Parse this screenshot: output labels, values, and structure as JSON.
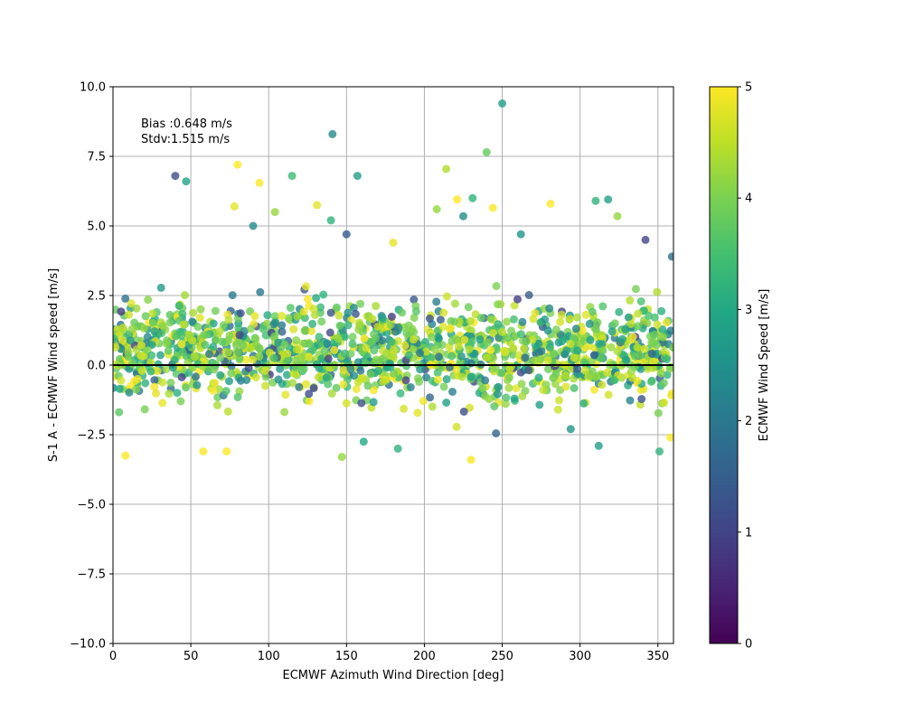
{
  "chart_data": {
    "type": "scatter",
    "title": "",
    "xlabel": "ECMWF Azimuth Wind Direction [deg]",
    "ylabel": "S-1 A - ECMWF Wind speed [m/s]",
    "xlim": [
      0,
      360
    ],
    "ylim": [
      -10,
      10
    ],
    "xticks": [
      "0",
      "50",
      "100",
      "150",
      "200",
      "250",
      "300",
      "350"
    ],
    "yticks": [
      "10.0",
      "7.5",
      "5.0",
      "2.5",
      "0.0",
      "−2.5",
      "−5.0",
      "−7.5",
      "−10.0"
    ],
    "grid": true,
    "reference_line_y": 0,
    "annotations": [
      "Bias :0.648 m/s",
      "Stdv:1.515 m/s"
    ],
    "colorbar": {
      "label": "ECMWF Wind Speed [m/s]",
      "range": [
        0,
        5
      ],
      "ticks": [
        "0",
        "1",
        "2",
        "3",
        "4",
        "5"
      ],
      "colormap": "viridis"
    },
    "point_count": 1500,
    "point_distribution": {
      "x_range": [
        0,
        360
      ],
      "typical_y_range": [
        -3.4,
        3
      ],
      "center_y": 0.5
    },
    "points": [
      {
        "x": 40,
        "y": 6.8,
        "c": 1.2
      },
      {
        "x": 47,
        "y": 6.6,
        "c": 2.9
      },
      {
        "x": 80,
        "y": 7.2,
        "c": 5.0
      },
      {
        "x": 78,
        "y": 5.7,
        "c": 4.8
      },
      {
        "x": 90,
        "y": 5.0,
        "c": 2.4
      },
      {
        "x": 94,
        "y": 6.55,
        "c": 5.0
      },
      {
        "x": 104,
        "y": 5.5,
        "c": 4.2
      },
      {
        "x": 115,
        "y": 6.8,
        "c": 3.4
      },
      {
        "x": 131,
        "y": 5.75,
        "c": 4.8
      },
      {
        "x": 140,
        "y": 5.2,
        "c": 3.2
      },
      {
        "x": 141,
        "y": 8.3,
        "c": 2.4
      },
      {
        "x": 157,
        "y": 6.8,
        "c": 2.8
      },
      {
        "x": 150,
        "y": 4.7,
        "c": 1.4
      },
      {
        "x": 180,
        "y": 4.4,
        "c": 4.8
      },
      {
        "x": 208,
        "y": 5.6,
        "c": 4.2
      },
      {
        "x": 214,
        "y": 7.05,
        "c": 4.4
      },
      {
        "x": 221,
        "y": 5.95,
        "c": 5.0
      },
      {
        "x": 225,
        "y": 5.35,
        "c": 2.4
      },
      {
        "x": 231,
        "y": 6.0,
        "c": 3.2
      },
      {
        "x": 240,
        "y": 7.65,
        "c": 3.8
      },
      {
        "x": 250,
        "y": 9.4,
        "c": 2.8
      },
      {
        "x": 244,
        "y": 5.65,
        "c": 5.0
      },
      {
        "x": 262,
        "y": 4.7,
        "c": 2.6
      },
      {
        "x": 281,
        "y": 5.8,
        "c": 5.0
      },
      {
        "x": 310,
        "y": 5.9,
        "c": 3.2
      },
      {
        "x": 318,
        "y": 5.95,
        "c": 2.8
      },
      {
        "x": 324,
        "y": 5.35,
        "c": 4.2
      },
      {
        "x": 342,
        "y": 4.5,
        "c": 1.0
      },
      {
        "x": 359,
        "y": 3.9,
        "c": 1.8
      },
      {
        "x": 8,
        "y": -3.25,
        "c": 5.0
      },
      {
        "x": 58,
        "y": -3.1,
        "c": 5.0
      },
      {
        "x": 73,
        "y": -3.1,
        "c": 5.0
      },
      {
        "x": 147,
        "y": -3.3,
        "c": 4.2
      },
      {
        "x": 161,
        "y": -2.75,
        "c": 3.0
      },
      {
        "x": 183,
        "y": -3.0,
        "c": 3.2
      },
      {
        "x": 230,
        "y": -3.4,
        "c": 5.0
      },
      {
        "x": 246,
        "y": -2.45,
        "c": 1.6
      },
      {
        "x": 294,
        "y": -2.3,
        "c": 2.6
      },
      {
        "x": 312,
        "y": -2.9,
        "c": 2.8
      },
      {
        "x": 351,
        "y": -3.1,
        "c": 3.2
      },
      {
        "x": 358,
        "y": -2.6,
        "c": 5.0
      }
    ]
  }
}
